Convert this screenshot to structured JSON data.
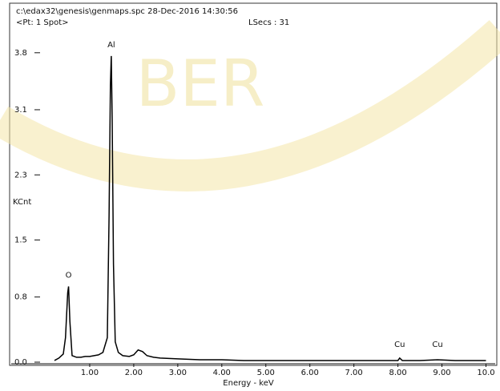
{
  "chart_data": {
    "type": "line",
    "header": "c:\\edax32\\genesis\\genmaps.spc  28-Dec-2016 14:30:56",
    "subheader": "<Pt: 1 Spot>",
    "live_seconds": "LSecs : 31",
    "watermark": "BER",
    "xlabel": "Energy - keV",
    "ylabel": "KCnt",
    "xlim": [
      0,
      10.1
    ],
    "ylim": [
      0,
      4.3
    ],
    "xticks": [
      {
        "value": 1,
        "label": "1.00"
      },
      {
        "value": 2,
        "label": "2.00"
      },
      {
        "value": 3,
        "label": "3.00"
      },
      {
        "value": 4,
        "label": "4.00"
      },
      {
        "value": 5,
        "label": "5.00"
      },
      {
        "value": 6,
        "label": "6.00"
      },
      {
        "value": 7,
        "label": "7.00"
      },
      {
        "value": 8,
        "label": "8.00"
      },
      {
        "value": 9,
        "label": "9.00"
      },
      {
        "value": 10,
        "label": "10.0"
      }
    ],
    "yticks": [
      {
        "value": 0,
        "label": "0.0"
      },
      0.8,
      1.5,
      2.3,
      3.1,
      3.8
    ],
    "x": [
      0.2,
      0.3,
      0.4,
      0.45,
      0.5,
      0.52,
      0.55,
      0.6,
      0.7,
      0.8,
      0.9,
      1.0,
      1.1,
      1.2,
      1.3,
      1.4,
      1.44,
      1.47,
      1.49,
      1.51,
      1.54,
      1.58,
      1.65,
      1.75,
      1.9,
      2.0,
      2.1,
      2.2,
      2.3,
      2.45,
      2.6,
      3.0,
      3.5,
      4.0,
      4.5,
      5.0,
      5.5,
      6.0,
      6.5,
      7.0,
      7.5,
      8.0,
      8.04,
      8.1,
      8.5,
      8.9,
      9.3,
      9.8,
      10.0
    ],
    "series": [
      {
        "color": "#000000",
        "values": [
          0.02,
          0.05,
          0.1,
          0.3,
          0.85,
          0.93,
          0.5,
          0.08,
          0.06,
          0.06,
          0.07,
          0.07,
          0.08,
          0.09,
          0.12,
          0.3,
          1.8,
          3.4,
          3.76,
          3.0,
          1.2,
          0.25,
          0.12,
          0.08,
          0.07,
          0.09,
          0.15,
          0.13,
          0.08,
          0.06,
          0.05,
          0.04,
          0.03,
          0.03,
          0.02,
          0.02,
          0.02,
          0.02,
          0.02,
          0.02,
          0.02,
          0.02,
          0.05,
          0.02,
          0.02,
          0.03,
          0.02,
          0.02,
          0.02
        ]
      }
    ],
    "annotations": [
      {
        "text": "O",
        "x": 0.52
      },
      {
        "text": "Al",
        "x": 1.49
      },
      {
        "text": "Cu",
        "x": 8.04
      },
      {
        "text": "Cu",
        "x": 8.9
      }
    ]
  }
}
